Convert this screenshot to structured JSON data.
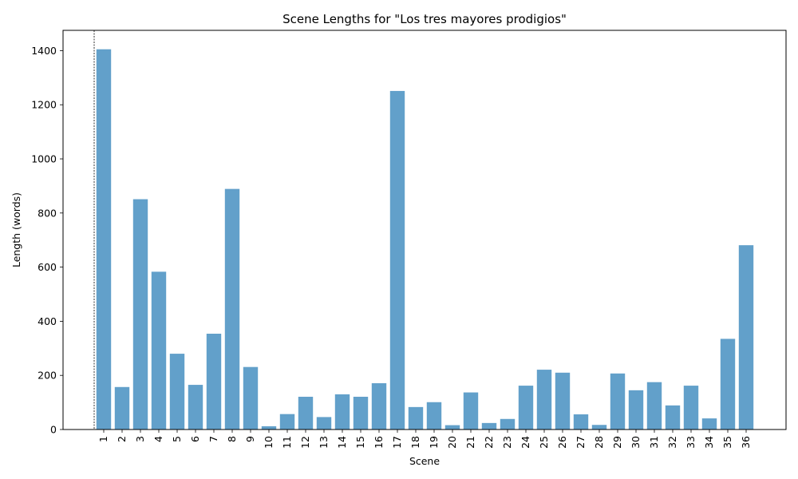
{
  "chart_data": {
    "type": "bar",
    "title": "Scene Lengths for \"Los tres mayores prodigios\"",
    "xlabel": "Scene",
    "ylabel": "Length (words)",
    "categories": [
      "1",
      "2",
      "3",
      "4",
      "5",
      "6",
      "7",
      "8",
      "9",
      "10",
      "11",
      "12",
      "13",
      "14",
      "15",
      "16",
      "17",
      "18",
      "19",
      "20",
      "21",
      "22",
      "23",
      "24",
      "25",
      "26",
      "27",
      "28",
      "29",
      "30",
      "31",
      "32",
      "33",
      "34",
      "35",
      "36"
    ],
    "values": [
      1405,
      157,
      851,
      583,
      280,
      165,
      354,
      889,
      231,
      12,
      57,
      121,
      46,
      130,
      121,
      171,
      1251,
      83,
      101,
      16,
      137,
      24,
      39,
      162,
      221,
      210,
      56,
      17,
      207,
      145,
      175,
      89,
      162,
      41,
      335,
      681
    ],
    "yticks": [
      0,
      200,
      400,
      600,
      800,
      1000,
      1200,
      1400
    ],
    "ylim": [
      0,
      1475
    ],
    "grid": false,
    "legend": "none"
  }
}
